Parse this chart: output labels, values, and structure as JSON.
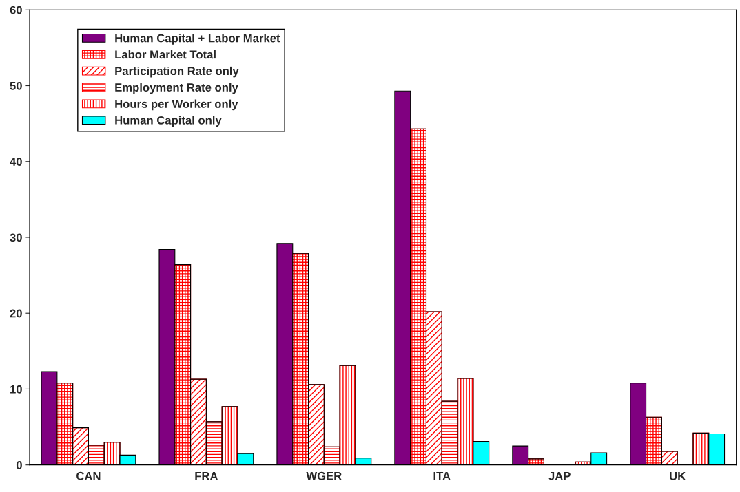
{
  "chart_data": {
    "type": "bar",
    "categories": [
      "CAN",
      "FRA",
      "WGER",
      "ITA",
      "JAP",
      "UK"
    ],
    "series": [
      {
        "name": "Human Capital + Labor Market",
        "color": "#800080",
        "values": [
          12.3,
          28.4,
          29.2,
          49.3,
          2.5,
          10.8
        ]
      },
      {
        "name": "Labor Market Total",
        "color": "#ff0000",
        "values": [
          10.8,
          26.4,
          27.9,
          44.3,
          0.8,
          6.3
        ]
      },
      {
        "name": "Participation Rate only",
        "color": "#ff0000",
        "values": [
          4.9,
          11.3,
          10.6,
          20.2,
          0.1,
          1.8
        ]
      },
      {
        "name": "Employment Rate only",
        "color": "#ff0000",
        "values": [
          2.6,
          5.7,
          2.4,
          8.4,
          0.1,
          0.1
        ]
      },
      {
        "name": "Hours per Worker only",
        "color": "#ff0000",
        "values": [
          3.0,
          7.7,
          13.1,
          11.4,
          0.4,
          4.2
        ]
      },
      {
        "name": "Human Capital only",
        "color": "#00ffff",
        "values": [
          1.3,
          1.5,
          0.9,
          3.1,
          1.6,
          4.1
        ]
      }
    ],
    "ylim": [
      0,
      60
    ],
    "yticks": [
      0,
      10,
      20,
      30,
      40,
      50,
      60
    ],
    "grid": false,
    "legend": "top left"
  }
}
